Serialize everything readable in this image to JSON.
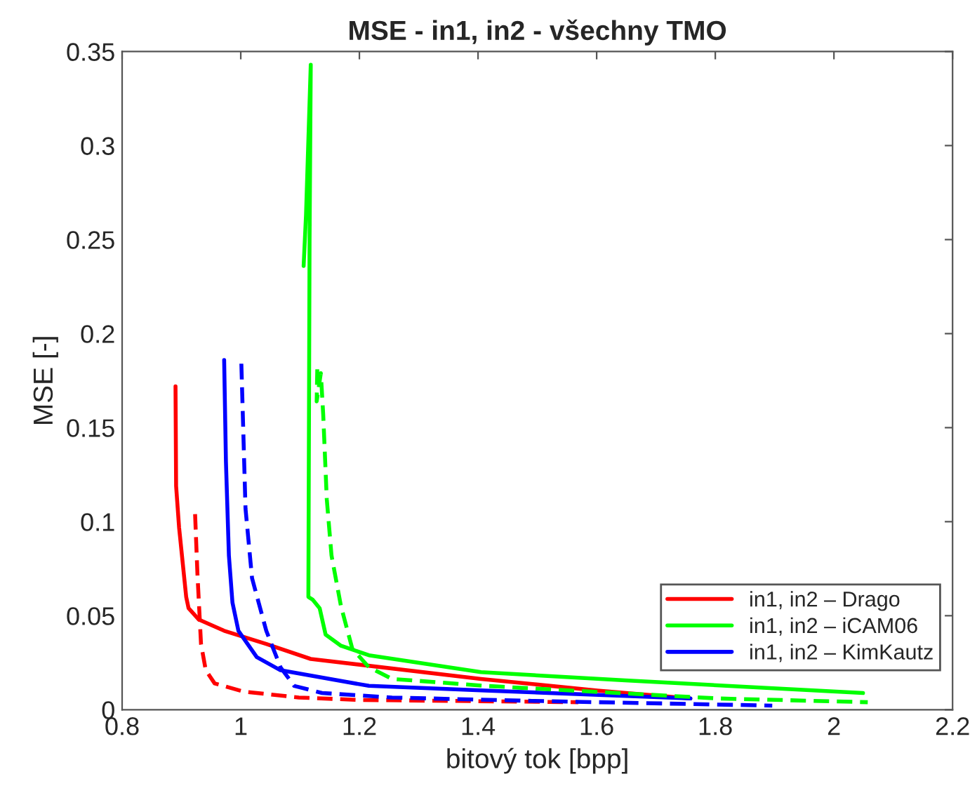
{
  "chart_data": {
    "type": "line",
    "title": "MSE - in1, in2 - všechny TMO",
    "xlabel": "bitový tok [bpp]",
    "ylabel": "MSE [-]",
    "xlim": [
      0.8,
      2.2
    ],
    "xticks": [
      0.8,
      1,
      1.2,
      1.4,
      1.6,
      1.8,
      2,
      2.2
    ],
    "ylim": [
      0,
      0.35
    ],
    "yticks": [
      0,
      0.05,
      0.1,
      0.15,
      0.2,
      0.25,
      0.3,
      0.35
    ],
    "grid": false,
    "legend": "bottom right",
    "marker": "none",
    "series": [
      {
        "name": "in1, in2 – Drago",
        "color": "#ff0000",
        "line_style": "solid",
        "x": [
          0.89,
          0.891,
          0.896,
          0.908,
          0.912,
          0.929,
          0.972,
          1.043,
          1.118,
          1.405,
          1.601,
          1.758
        ],
        "values": [
          0.172,
          0.119,
          0.097,
          0.06,
          0.054,
          0.048,
          0.042,
          0.035,
          0.027,
          0.0164,
          0.0102,
          0.006
        ]
      },
      {
        "name": "in1, in2 – iCAM06",
        "color": "#00ff00",
        "line_style": "solid",
        "x": [
          1.106,
          1.11,
          1.118,
          1.116,
          1.114,
          1.121,
          1.133,
          1.143,
          1.169,
          1.216,
          1.405,
          1.648,
          2.049
        ],
        "values": [
          0.236,
          0.263,
          0.343,
          0.25,
          0.06,
          0.0586,
          0.054,
          0.04,
          0.034,
          0.029,
          0.02,
          0.0156,
          0.0089
        ]
      },
      {
        "name": "in1, in2 – KimKautz",
        "color": "#0000ff",
        "line_style": "solid",
        "x": [
          0.972,
          0.975,
          0.98,
          0.986,
          0.996,
          1.027,
          1.067,
          1.216,
          1.412,
          1.758
        ],
        "values": [
          0.186,
          0.132,
          0.082,
          0.057,
          0.042,
          0.028,
          0.021,
          0.0127,
          0.0102,
          0.006
        ]
      },
      {
        "color": "#ff0000",
        "line_style": "dashed",
        "x": [
          0.923,
          0.927,
          0.933,
          0.941,
          0.956,
          1.004,
          1.098,
          1.2,
          1.569
        ],
        "values": [
          0.104,
          0.072,
          0.035,
          0.021,
          0.014,
          0.0097,
          0.0065,
          0.0052,
          0.004
        ]
      },
      {
        "color": "#00ff00",
        "line_style": "dashed",
        "x": [
          1.129,
          1.128,
          1.135,
          1.139,
          1.145,
          1.153,
          1.169,
          1.188,
          1.216,
          1.255,
          1.412,
          1.805,
          2.057
        ],
        "values": [
          0.181,
          0.164,
          0.179,
          0.157,
          0.112,
          0.082,
          0.055,
          0.0325,
          0.0226,
          0.0164,
          0.0127,
          0.006,
          0.004
        ]
      },
      {
        "color": "#0000ff",
        "line_style": "dashed",
        "x": [
          1.001,
          1.008,
          1.019,
          1.043,
          1.067,
          1.09,
          1.137,
          1.255,
          1.491,
          1.896
        ],
        "values": [
          0.184,
          0.107,
          0.07,
          0.042,
          0.0226,
          0.0127,
          0.0089,
          0.0065,
          0.0047,
          0.0022
        ]
      }
    ]
  }
}
